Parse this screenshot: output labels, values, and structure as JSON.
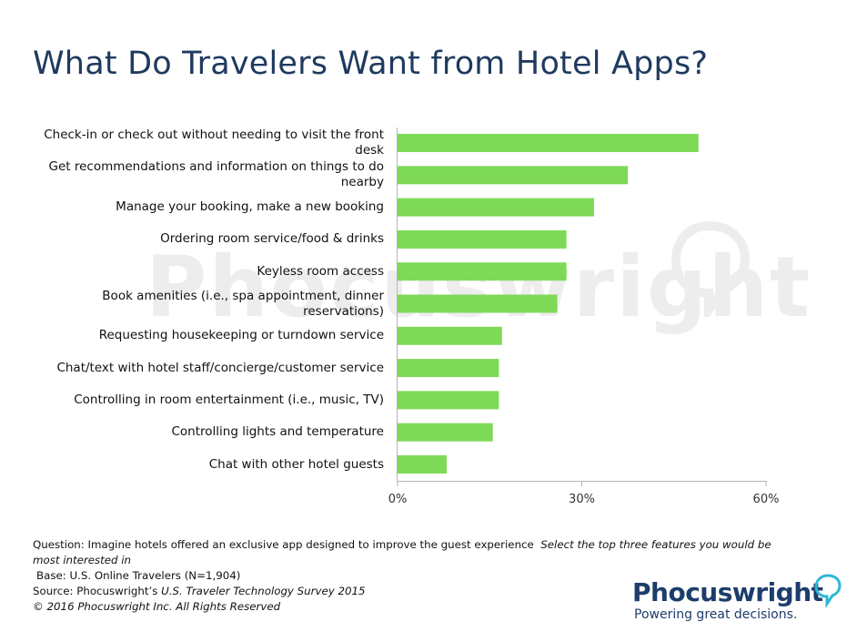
{
  "title": "What Do Travelers Want from Hotel Apps?",
  "watermark": "Phocuswright",
  "colors": {
    "bar": "#7ed957",
    "title": "#1f3a5f",
    "brand": "#1d3d6b",
    "accent": "#2bb8d6"
  },
  "chart_data": {
    "type": "bar",
    "orientation": "horizontal",
    "categories": [
      "Check-in or check out without needing to visit the front desk",
      "Get recommendations and information on things to do nearby",
      "Manage your booking, make a new booking",
      "Ordering room service/food & drinks",
      "Keyless room access",
      "Book amenities (i.e., spa appointment, dinner reservations)",
      "Requesting housekeeping or turndown service",
      "Chat/text with hotel staff/concierge/customer service",
      "Controlling in room entertainment (i.e., music, TV)",
      "Controlling lights and temperature",
      "Chat with other hotel guests"
    ],
    "values": [
      49,
      37.5,
      32,
      27.5,
      27.5,
      26,
      17,
      16.5,
      16.5,
      15.5,
      8
    ],
    "unit": "%",
    "xlim": [
      0,
      60
    ],
    "xticks": [
      "0%",
      "30%",
      "60%"
    ],
    "grid": false
  },
  "footnotes": {
    "question_prefix": "Question: Imagine hotels offered an exclusive app designed to improve the guest experience",
    "question_italic": "Select the top three features you would be most interested in",
    "base": "Base: U.S. Online Travelers (N=1,904)",
    "source_prefix": "Source: Phocuswright’s",
    "source_italic": "U.S. Traveler Technology Survey 2015",
    "copyright": "© 2016 Phocuswright Inc. All Rights Reserved"
  },
  "logo": {
    "wordmark": "Phocuswright",
    "tagline": "Powering great decisions."
  }
}
